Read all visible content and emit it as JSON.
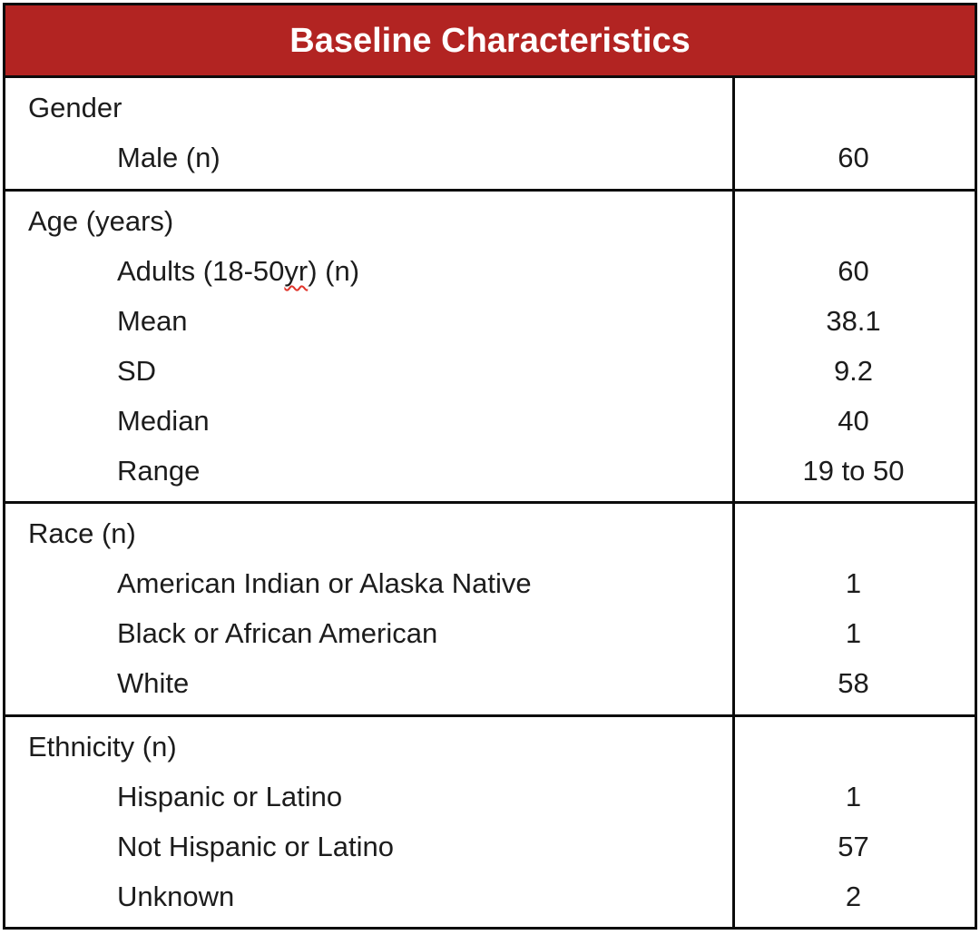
{
  "title": "Baseline Characteristics",
  "colors": {
    "header_bg": "#b22422",
    "header_text": "#ffffff",
    "border": "#0b0b0b",
    "text": "#1c1c1c",
    "squiggle": "#e0342b"
  },
  "table": {
    "sections": [
      {
        "header": "Gender",
        "rows": [
          {
            "label": "Male (n)",
            "value": "60"
          }
        ]
      },
      {
        "header": "Age (years)",
        "rows": [
          {
            "label_parts": [
              {
                "t": "Adults (18-50 "
              },
              {
                "t": "yr",
                "misspelled": true
              },
              {
                "t": ") (n)"
              }
            ],
            "value": "60"
          },
          {
            "label": "Mean",
            "value": "38.1"
          },
          {
            "label": "SD",
            "value": "9.2"
          },
          {
            "label": "Median",
            "value": "40"
          },
          {
            "label": "Range",
            "value": "19 to 50"
          }
        ]
      },
      {
        "header": "Race (n)",
        "rows": [
          {
            "label": "American Indian or Alaska Native",
            "value": "1"
          },
          {
            "label": "Black or African American",
            "value": "1"
          },
          {
            "label": "White",
            "value": "58"
          }
        ]
      },
      {
        "header": "Ethnicity (n)",
        "rows": [
          {
            "label": "Hispanic or Latino",
            "value": "1"
          },
          {
            "label": "Not Hispanic or Latino",
            "value": "57"
          },
          {
            "label": "Unknown",
            "value": "2"
          }
        ]
      }
    ]
  }
}
